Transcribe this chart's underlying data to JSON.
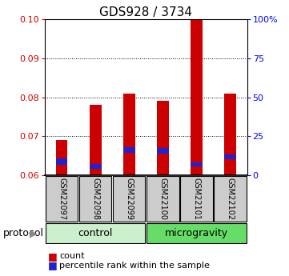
{
  "title": "GDS928 / 3734",
  "samples": [
    "GSM22097",
    "GSM22098",
    "GSM22099",
    "GSM22100",
    "GSM22101",
    "GSM22102"
  ],
  "red_tops": [
    0.069,
    0.078,
    0.081,
    0.079,
    0.1,
    0.081
  ],
  "blue_tops": [
    0.0635,
    0.0622,
    0.0665,
    0.0663,
    0.0628,
    0.0648
  ],
  "blue_heights": [
    0.0015,
    0.0012,
    0.0013,
    0.0013,
    0.001,
    0.0013
  ],
  "bar_bottom": 0.06,
  "red_color": "#cc0000",
  "blue_color": "#2222cc",
  "ylim_left": [
    0.06,
    0.1
  ],
  "ylim_right": [
    0,
    100
  ],
  "yticks_left": [
    0.06,
    0.07,
    0.08,
    0.09,
    0.1
  ],
  "yticks_right": [
    0,
    25,
    50,
    75,
    100
  ],
  "ytick_labels_right": [
    "0",
    "25",
    "50",
    "75",
    "100%"
  ],
  "control_color": "#ccf0cc",
  "microgravity_color": "#66dd66",
  "gray_color": "#cccccc",
  "legend_items": [
    "count",
    "percentile rank within the sample"
  ],
  "legend_colors": [
    "#cc0000",
    "#2222cc"
  ],
  "bar_width": 0.35,
  "title_fontsize": 11,
  "tick_fontsize": 8,
  "sample_fontsize": 7,
  "proto_fontsize": 9,
  "legend_fontsize": 8
}
